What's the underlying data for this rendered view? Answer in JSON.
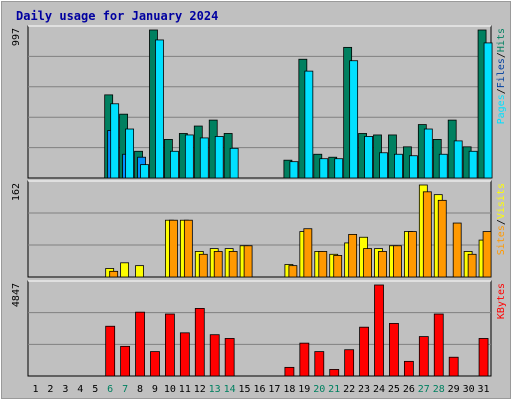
{
  "title": "Daily usage for January 2024",
  "colors": {
    "background": "#C0C0C0",
    "title": "#0000A0",
    "hits_front": "#00C8E0",
    "hits_back": "#008060",
    "files_front": "#0090FF",
    "files_back": "#0040A0",
    "pages_front": "#00E0FF",
    "pages_back": "#00A0C0",
    "visits_front": "#FFFF00",
    "visits_back": "#A0A000",
    "sites_front": "#FF9900",
    "sites_back": "#A05000",
    "kbytes_front": "#FF0000",
    "kbytes_back": "#800000",
    "weekend_label": "#008060",
    "day_label": "#000000"
  },
  "chart_data": {
    "type": "bar",
    "categories": [
      "1",
      "2",
      "3",
      "4",
      "5",
      "6",
      "7",
      "8",
      "9",
      "10",
      "11",
      "12",
      "13",
      "14",
      "15",
      "16",
      "17",
      "18",
      "19",
      "20",
      "21",
      "22",
      "23",
      "24",
      "25",
      "26",
      "27",
      "28",
      "29",
      "30",
      "31"
    ],
    "weekend_days": [
      "6",
      "7",
      "13",
      "14",
      "20",
      "21",
      "27",
      "28"
    ],
    "panels": [
      {
        "id": "hits_files",
        "max_label": "997",
        "ylim": [
          0,
          997
        ],
        "legend": [
          "Pages",
          "Files",
          "Hits"
        ],
        "series": [
          {
            "name": "Hits",
            "values": [
              0,
              0,
              0,
              0,
              0,
              560,
              430,
              180,
              997,
              260,
              300,
              350,
              390,
              300,
              0,
              0,
              0,
              120,
              800,
              160,
              140,
              880,
              300,
              290,
              290,
              210,
              360,
              260,
              390,
              210,
              997
            ]
          },
          {
            "name": "Files",
            "values": [
              0,
              0,
              0,
              0,
              0,
              320,
              160,
              140,
              0,
              0,
              0,
              0,
              0,
              0,
              0,
              0,
              0,
              0,
              0,
              0,
              0,
              0,
              0,
              0,
              0,
              0,
              0,
              0,
              0,
              0,
              0
            ]
          },
          {
            "name": "Pages",
            "values": [
              0,
              0,
              0,
              0,
              0,
              500,
              330,
              90,
              930,
              180,
              290,
              270,
              280,
              200,
              0,
              0,
              0,
              110,
              720,
              130,
              130,
              790,
              280,
              170,
              160,
              150,
              330,
              160,
              250,
              180,
              910
            ]
          }
        ]
      },
      {
        "id": "visits_sites",
        "max_label": "162",
        "ylim": [
          0,
          162
        ],
        "legend": [
          "Sites",
          "Visits"
        ],
        "series": [
          {
            "name": "Visits",
            "values": [
              0,
              0,
              0,
              0,
              0,
              15,
              25,
              20,
              0,
              100,
              100,
              45,
              50,
              50,
              55,
              0,
              0,
              22,
              80,
              45,
              40,
              60,
              70,
              50,
              55,
              80,
              162,
              145,
              0,
              45,
              65
            ]
          },
          {
            "name": "Sites",
            "values": [
              0,
              0,
              0,
              0,
              0,
              10,
              0,
              0,
              0,
              100,
              100,
              40,
              45,
              45,
              55,
              0,
              0,
              20,
              85,
              45,
              38,
              75,
              50,
              45,
              55,
              80,
              150,
              135,
              95,
              40,
              80
            ]
          }
        ]
      },
      {
        "id": "kbytes",
        "max_label": "4847",
        "ylim": [
          0,
          4847
        ],
        "legend": [
          "KBytes"
        ],
        "series": [
          {
            "name": "KBytes",
            "values": [
              0,
              0,
              0,
              0,
              0,
              2650,
              1580,
              3400,
              1300,
              3300,
              2300,
              3600,
              2200,
              2000,
              0,
              0,
              0,
              460,
              1750,
              1300,
              350,
              1400,
              2600,
              4847,
              2800,
              780,
              2100,
              3300,
              1000,
              0,
              2000
            ]
          }
        ]
      }
    ]
  }
}
